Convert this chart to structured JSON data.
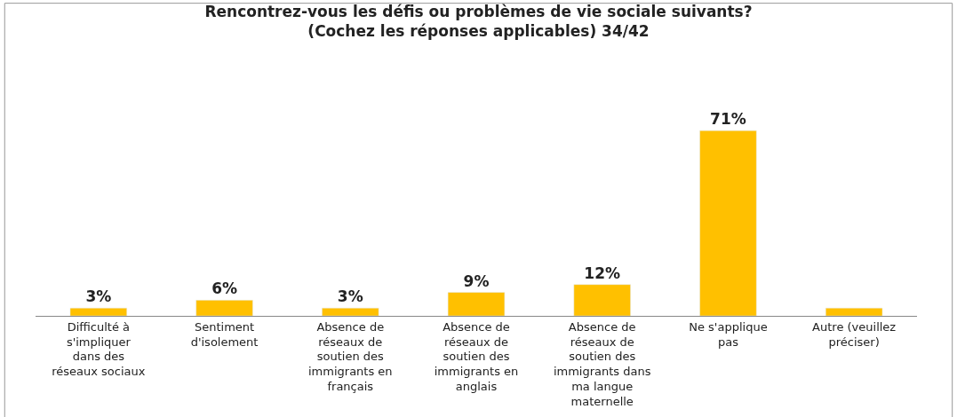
{
  "chart_data": {
    "type": "bar",
    "title": "Rencontrez-vous les défis ou problèmes de vie sociale suivants?\n(Cochez les réponses applicables) 34/42",
    "categories": [
      "Difficulté à s'impliquer dans des réseaux sociaux",
      "Sentiment d'isolement",
      "Absence de réseaux de soutien des immigrants en français",
      "Absence de réseaux de soutien des immigrants en anglais",
      "Absence de réseaux de soutien des immigrants dans ma langue maternelle",
      "Ne s'applique pas",
      "Autre (veuillez préciser)"
    ],
    "values": [
      3,
      6,
      3,
      9,
      12,
      71,
      3
    ],
    "value_labels": [
      "3%",
      "6%",
      "3%",
      "9%",
      "12%",
      "71%",
      null
    ],
    "color": "#ffc000",
    "legend": false
  }
}
